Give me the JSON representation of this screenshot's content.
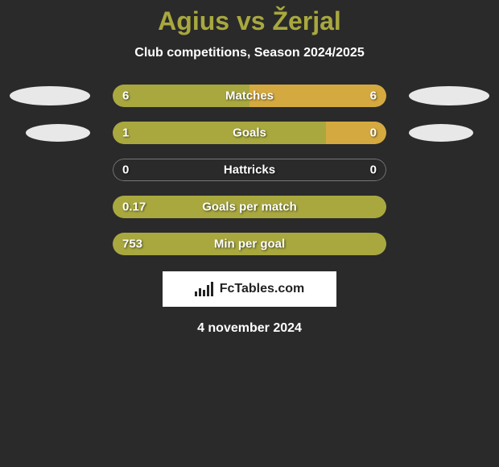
{
  "title": "Agius vs Žerjal",
  "subtitle": "Club competitions, Season 2024/2025",
  "brand": "FcTables.com",
  "date": "4 november 2024",
  "colors": {
    "player1_fill": "#a8a83f",
    "player2_fill": "#d4a93f",
    "background": "#2a2a2a",
    "title_color": "#a8a83f",
    "text_color": "#ffffff",
    "badge_color": "#e8e8e8",
    "track_border": "#777777"
  },
  "rows": [
    {
      "metric": "Matches",
      "left_value": "6",
      "right_value": "6",
      "left_pct": 50,
      "right_pct": 50,
      "show_badges": true
    },
    {
      "metric": "Goals",
      "left_value": "1",
      "right_value": "0",
      "left_pct": 78,
      "right_pct": 22,
      "show_badges": true
    },
    {
      "metric": "Hattricks",
      "left_value": "0",
      "right_value": "0",
      "left_pct": 0,
      "right_pct": 0,
      "show_badges": false
    },
    {
      "metric": "Goals per match",
      "left_value": "0.17",
      "right_value": "",
      "left_pct": 100,
      "right_pct": 0,
      "show_badges": false
    },
    {
      "metric": "Min per goal",
      "left_value": "753",
      "right_value": "",
      "left_pct": 100,
      "right_pct": 0,
      "show_badges": false
    }
  ]
}
